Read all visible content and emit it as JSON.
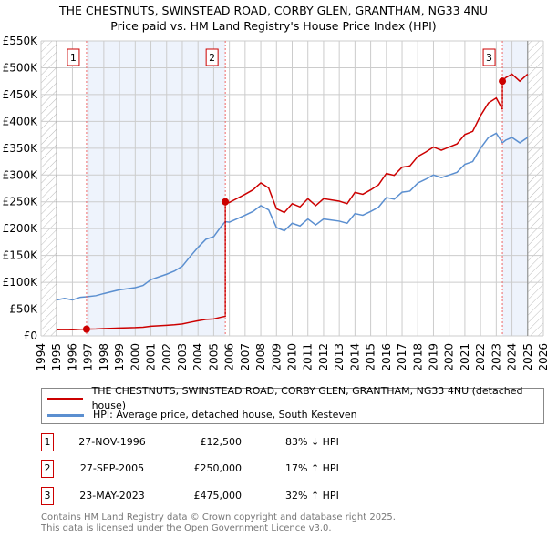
{
  "chart_data": {
    "type": "line",
    "title": "THE CHESTNUTS, SWINSTEAD ROAD, CORBY GLEN, GRANTHAM, NG33 4NU",
    "subtitle": "Price paid vs. HM Land Registry's House Price Index (HPI)",
    "xlim": [
      1994,
      2026
    ],
    "ylim": [
      0,
      550000
    ],
    "x_ticks": [
      "1994",
      "1995",
      "1996",
      "1997",
      "1998",
      "1999",
      "2000",
      "2001",
      "2002",
      "2003",
      "2004",
      "2005",
      "2006",
      "2007",
      "2008",
      "2009",
      "2010",
      "2011",
      "2012",
      "2013",
      "2014",
      "2015",
      "2016",
      "2017",
      "2018",
      "2019",
      "2020",
      "2021",
      "2022",
      "2023",
      "2024",
      "2025",
      "2026"
    ],
    "y_ticks": [
      {
        "v": 0,
        "label": "£0"
      },
      {
        "v": 50000,
        "label": "£50K"
      },
      {
        "v": 100000,
        "label": "£100K"
      },
      {
        "v": 150000,
        "label": "£150K"
      },
      {
        "v": 200000,
        "label": "£200K"
      },
      {
        "v": 250000,
        "label": "£250K"
      },
      {
        "v": 300000,
        "label": "£300K"
      },
      {
        "v": 350000,
        "label": "£350K"
      },
      {
        "v": 400000,
        "label": "£400K"
      },
      {
        "v": 450000,
        "label": "£450K"
      },
      {
        "v": 500000,
        "label": "£500K"
      },
      {
        "v": 550000,
        "label": "£550K"
      }
    ],
    "data_range": [
      1995,
      2025
    ],
    "hpi": {
      "name": "HPI: Average price, detached house, South Kesteven",
      "color": "#5b8fd0",
      "x": [
        1995,
        1995.5,
        1996,
        1996.5,
        1996.9,
        1997.5,
        1998,
        1999,
        2000,
        2000.5,
        2001,
        2002,
        2002.5,
        2003,
        2003.5,
        2004,
        2004.5,
        2005,
        2005.5,
        2005.74,
        2006,
        2007,
        2007.5,
        2008,
        2008.5,
        2009,
        2009.5,
        2010,
        2010.5,
        2011,
        2011.5,
        2012,
        2013,
        2013.5,
        2014,
        2014.5,
        2015,
        2015.5,
        2016,
        2016.5,
        2017,
        2017.5,
        2018,
        2018.5,
        2019,
        2019.5,
        2020,
        2020.5,
        2021,
        2021.5,
        2022,
        2022.5,
        2023,
        2023.39,
        2023.6,
        2024,
        2024.5,
        2025
      ],
      "y": [
        67000,
        70000,
        67000,
        72000,
        73000,
        75000,
        79000,
        86000,
        90000,
        94000,
        105000,
        115000,
        121000,
        130000,
        148000,
        165000,
        180000,
        185000,
        205000,
        213000,
        212000,
        225000,
        232000,
        243000,
        235000,
        202000,
        196000,
        210000,
        205000,
        218000,
        207000,
        218000,
        214000,
        210000,
        228000,
        225000,
        232000,
        240000,
        258000,
        255000,
        268000,
        270000,
        285000,
        292000,
        300000,
        295000,
        300000,
        305000,
        320000,
        325000,
        350000,
        370000,
        378000,
        360000,
        365000,
        370000,
        360000,
        370000
      ]
    },
    "property": {
      "name": "THE CHESTNUTS, SWINSTEAD ROAD, CORBY GLEN, GRANTHAM, NG33 4NU (detached house)",
      "color": "#cc0000"
    },
    "sales": [
      {
        "id": "1",
        "x": 1996.9,
        "date": "27-NOV-1996",
        "price": 12500,
        "price_label": "£12,500",
        "hpi_rel": "83% ↓ HPI"
      },
      {
        "id": "2",
        "x": 2005.74,
        "date": "27-SEP-2005",
        "price": 250000,
        "price_label": "£250,000",
        "hpi_rel": "17% ↑ HPI"
      },
      {
        "id": "3",
        "x": 2023.39,
        "date": "23-MAY-2023",
        "price": 475000,
        "price_label": "£475,000",
        "hpi_rel": "32% ↑ HPI"
      }
    ]
  },
  "footer": {
    "line1": "Contains HM Land Registry data © Crown copyright and database right 2025.",
    "line2": "This data is licensed under the Open Government Licence v3.0."
  }
}
